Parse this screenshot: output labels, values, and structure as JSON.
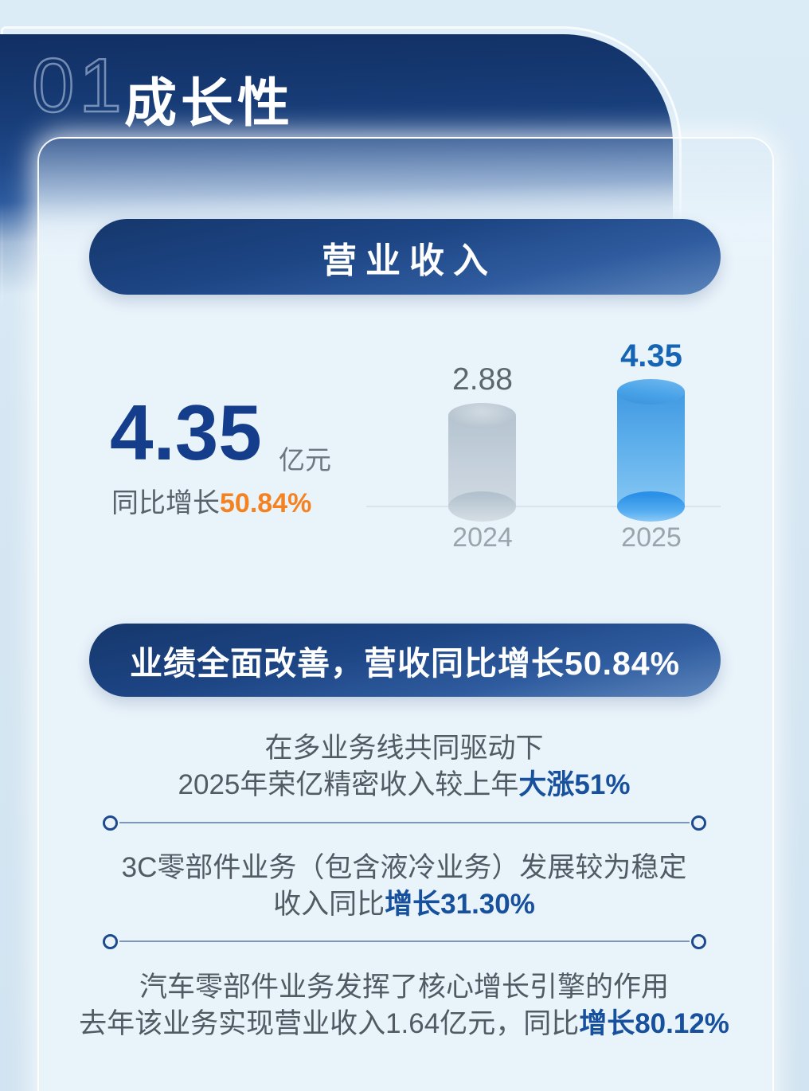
{
  "page": {
    "section_number": "01",
    "section_title": "成长性"
  },
  "revenue_banner": {
    "label": "营业收入"
  },
  "stat": {
    "value": "4.35",
    "unit": "亿元",
    "growth_label": "同比增长",
    "growth_value": "50.84%"
  },
  "chart_data": {
    "type": "bar",
    "categories": [
      "2024",
      "2025"
    ],
    "values": [
      2.88,
      4.35
    ],
    "value_labels": [
      "2.88",
      "4.35"
    ],
    "unit": "亿元",
    "title": "营业收入",
    "xlabel": "",
    "ylabel": "",
    "ylim": [
      0,
      4.35
    ],
    "grid": false,
    "legend": false,
    "bar_style": "cylinder-3d",
    "bar_colors": [
      "#bcc9d4",
      "#45a0e6"
    ],
    "label_colors": [
      "#5d666d",
      "#1565b4"
    ]
  },
  "highlight_banner": {
    "label": "业绩全面改善，营收同比增长50.84%"
  },
  "sections": [
    {
      "line1": {
        "text": "在多业务线共同驱动下",
        "em": ""
      },
      "line2": {
        "text": "2025年荣亿精密收入较上年",
        "em": "大涨51%"
      }
    },
    {
      "line1": {
        "text": "3C零部件业务（包含液冷业务）发展较为稳定",
        "em": ""
      },
      "line2": {
        "text": "收入同比",
        "em": "增长31.30%"
      }
    },
    {
      "line1": {
        "text": "汽车零部件业务发挥了核心增长引擎的作用",
        "em": ""
      },
      "line2": {
        "text": "去年该业务实现营业收入1.64亿元，同比",
        "em": "增长80.12%"
      }
    }
  ],
  "colors": {
    "header_navy": "#112f63",
    "pill_gradient_start": "#15376c",
    "pill_gradient_end": "#5d86bc",
    "stat_navy": "#143e8c",
    "accent_orange": "#f58220",
    "accent_blue": "#17519d",
    "body_gray": "#525b63",
    "card_bg": "#e9f3fa",
    "page_bg": "#d6e7f3"
  }
}
